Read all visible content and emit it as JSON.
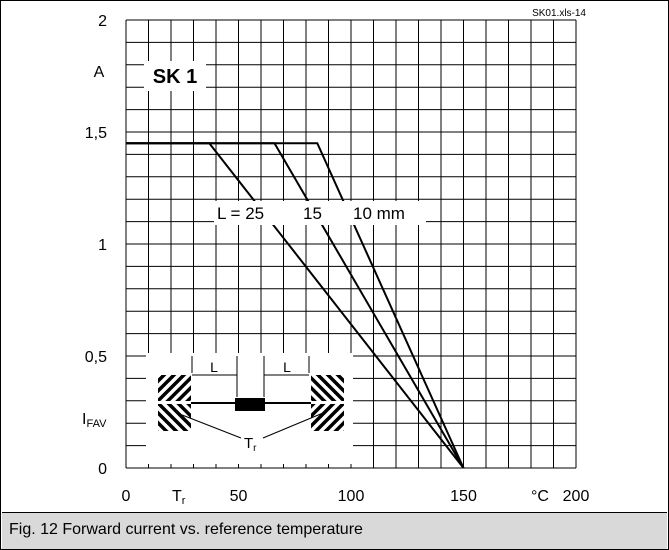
{
  "chart_data": {
    "type": "line",
    "source_label": "SK01.xls-14",
    "title": "SK 1",
    "ylabel_unit": "A",
    "ylabel_symbol": "I",
    "ylabel_subscript": "FAV",
    "xlabel_symbol": "T",
    "xlabel_subscript": "r",
    "xunit": "°C",
    "xlim": [
      0,
      200
    ],
    "ylim": [
      0,
      2
    ],
    "grid": true,
    "x_grid_step": 10,
    "y_grid_step": 0.1,
    "xticks": [
      {
        "value": 0,
        "label": "0"
      },
      {
        "value": 50,
        "label": "50"
      },
      {
        "value": 100,
        "label": "100"
      },
      {
        "value": 150,
        "label": "150"
      },
      {
        "value": 200,
        "label": "200"
      }
    ],
    "yticks": [
      {
        "value": 0,
        "label": "0"
      },
      {
        "value": 0.5,
        "label": "0,5"
      },
      {
        "value": 1,
        "label": "1"
      },
      {
        "value": 1.5,
        "label": "1,5"
      },
      {
        "value": 2,
        "label": "2"
      }
    ],
    "series_label_prefix": "L =",
    "series": [
      {
        "name": "25",
        "points": [
          [
            0,
            1.45
          ],
          [
            37,
            1.45
          ],
          [
            150,
            0
          ]
        ]
      },
      {
        "name": "15",
        "points": [
          [
            0,
            1.45
          ],
          [
            66,
            1.45
          ],
          [
            150,
            0
          ]
        ]
      },
      {
        "name": "10 mm",
        "points": [
          [
            0,
            1.45
          ],
          [
            85,
            1.45
          ],
          [
            150,
            0
          ]
        ]
      }
    ],
    "inset": {
      "dimension_labels": [
        "L",
        "L"
      ],
      "temperature_symbol": "T",
      "temperature_subscript": "r"
    }
  },
  "caption": "Fig. 12 Forward current vs. reference temperature"
}
